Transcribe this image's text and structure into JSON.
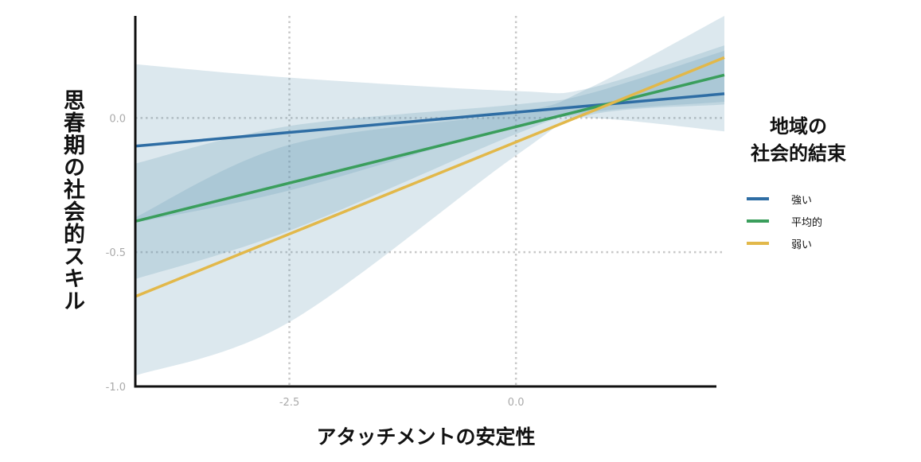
{
  "chart_data": {
    "type": "line",
    "xlabel": "アタッチメントの安定性",
    "ylabel": "思春期の社会的スキル",
    "xlim": [
      -4.2,
      2.3
    ],
    "ylim": [
      -1.0,
      0.38
    ],
    "x_ticks": [
      -2.5,
      0.0
    ],
    "x_tick_labels": [
      "-2.5",
      "0.0"
    ],
    "y_ticks": [
      0.0,
      -0.5,
      -1.0
    ],
    "y_tick_labels": [
      "0.0",
      "-0.5",
      "-1.0"
    ],
    "grid": "dotted at tick positions",
    "legend": {
      "title": "地域の\n社会的結束",
      "placement": "right"
    },
    "series": [
      {
        "name": "強い",
        "color": "#2e6da4",
        "x": [
          -4.2,
          2.3
        ],
        "y": [
          -0.105,
          0.09
        ],
        "band": {
          "x": [
            -4.2,
            -2.5,
            0.0,
            0.8,
            2.3
          ],
          "lower": [
            -0.39,
            -0.27,
            -0.03,
            0.0,
            -0.05
          ],
          "upper": [
            0.2,
            0.15,
            0.1,
            0.11,
            0.27
          ]
        }
      },
      {
        "name": "平均的",
        "color": "#3a9e5c",
        "x": [
          -4.2,
          2.3
        ],
        "y": [
          -0.385,
          0.16
        ],
        "band": {
          "x": [
            -4.2,
            -2.5,
            0.0,
            0.8,
            2.3
          ],
          "lower": [
            -0.6,
            -0.42,
            -0.06,
            0.02,
            0.06
          ],
          "upper": [
            -0.17,
            -0.03,
            0.05,
            0.09,
            0.25
          ]
        }
      },
      {
        "name": "弱い",
        "color": "#e2b84a",
        "x": [
          -4.2,
          2.3
        ],
        "y": [
          -0.665,
          0.225
        ],
        "band": {
          "x": [
            -4.2,
            -2.5,
            0.0,
            0.8,
            2.3
          ],
          "lower": [
            -0.96,
            -0.76,
            -0.14,
            0.01,
            0.05
          ],
          "upper": [
            -0.37,
            -0.1,
            0.02,
            0.11,
            0.38
          ]
        }
      }
    ]
  }
}
